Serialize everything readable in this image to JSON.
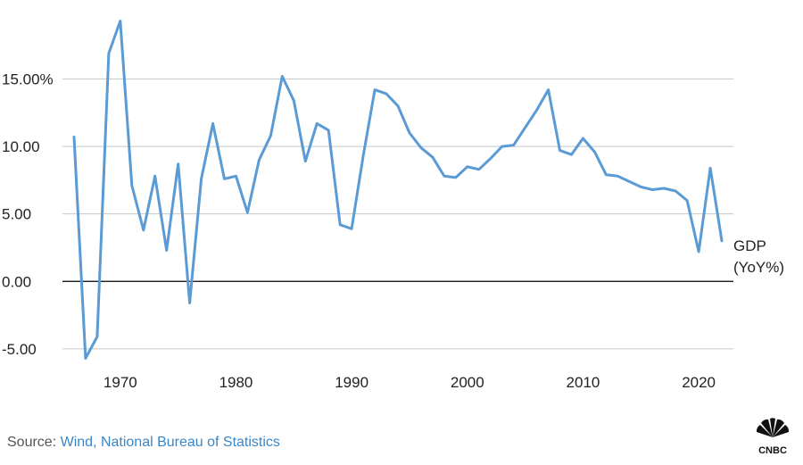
{
  "chart_data": {
    "type": "line",
    "title": "",
    "xlabel": "",
    "ylabel": "",
    "ylim": [
      -6,
      19
    ],
    "xlim": [
      1965,
      2023
    ],
    "y_ticks": [
      -5,
      0,
      5,
      10,
      15
    ],
    "y_tick_labels": [
      "-5.00",
      "0.00",
      "5.00",
      "10.00",
      "15.00%"
    ],
    "x_ticks": [
      1970,
      1980,
      1990,
      2000,
      2010,
      2020
    ],
    "x_tick_labels": [
      "1970",
      "1980",
      "1990",
      "2000",
      "2010",
      "2020"
    ],
    "grid": "horizontal",
    "series": [
      {
        "name": "GDP (YoY%)",
        "label_lines": [
          "GDP",
          "(YoY%)"
        ],
        "color": "#5b9bd5",
        "x": [
          1966,
          1967,
          1968,
          1969,
          1970,
          1971,
          1972,
          1973,
          1974,
          1975,
          1976,
          1977,
          1978,
          1979,
          1980,
          1981,
          1982,
          1983,
          1984,
          1985,
          1986,
          1987,
          1988,
          1989,
          1990,
          1991,
          1992,
          1993,
          1994,
          1995,
          1996,
          1997,
          1998,
          1999,
          2000,
          2001,
          2002,
          2003,
          2004,
          2005,
          2006,
          2007,
          2008,
          2009,
          2010,
          2011,
          2012,
          2013,
          2014,
          2015,
          2016,
          2017,
          2018,
          2019,
          2020,
          2021,
          2022
        ],
        "y": [
          10.7,
          -5.7,
          -4.1,
          16.9,
          19.3,
          7.1,
          3.8,
          7.8,
          2.3,
          8.7,
          -1.6,
          7.6,
          11.7,
          7.6,
          7.8,
          5.1,
          9.0,
          10.8,
          15.2,
          13.4,
          8.9,
          11.7,
          11.2,
          4.2,
          3.9,
          9.3,
          14.2,
          13.9,
          13.0,
          11.0,
          9.9,
          9.2,
          7.8,
          7.7,
          8.5,
          8.3,
          9.1,
          10.0,
          10.1,
          11.4,
          12.7,
          14.2,
          9.7,
          9.4,
          10.6,
          9.6,
          7.9,
          7.8,
          7.4,
          7.0,
          6.8,
          6.9,
          6.7,
          6.0,
          2.2,
          8.4,
          3.0
        ]
      }
    ],
    "zero_line": true
  },
  "footer": {
    "source_label": "Source: ",
    "source_text": "Wind, National Bureau of Statistics",
    "logo_text": "CNBC"
  },
  "colors": {
    "series": "#5b9bd5",
    "grid": "#c8c8c8",
    "zero_line": "#000000",
    "source_link": "#3a86c8"
  }
}
